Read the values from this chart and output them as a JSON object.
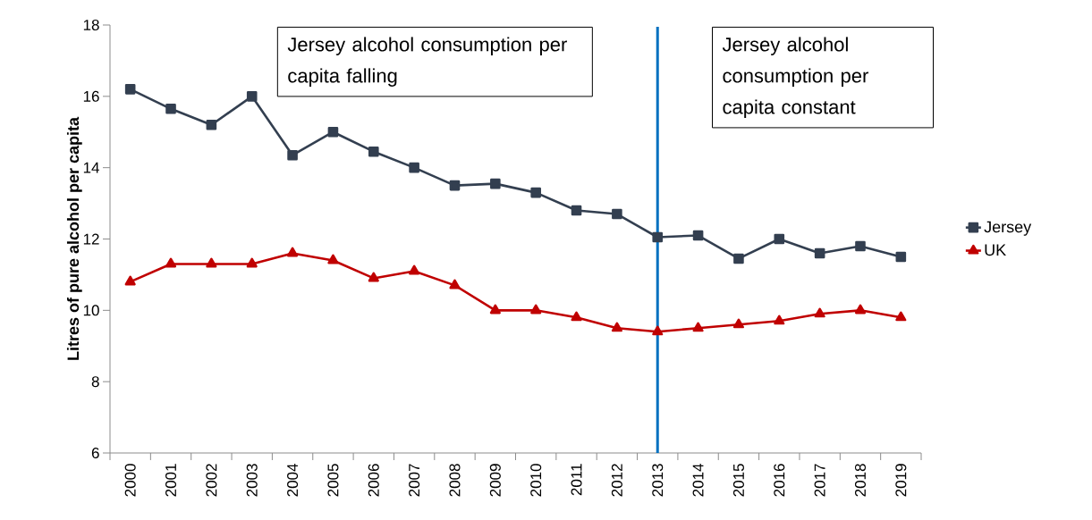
{
  "chart_data": {
    "type": "line",
    "ylabel": "Litres of pure alcohol per capita",
    "categories": [
      "2000",
      "2001",
      "2002",
      "2003",
      "2004",
      "2005",
      "2006",
      "2007",
      "2008",
      "2009",
      "2010",
      "2011",
      "2012",
      "2013",
      "2014",
      "2015",
      "2016",
      "2017",
      "2018",
      "2019"
    ],
    "series": [
      {
        "name": "Jersey",
        "color": "#333f50",
        "marker": "square",
        "values": [
          16.2,
          15.65,
          15.2,
          16.0,
          14.35,
          15.0,
          14.45,
          14.0,
          13.5,
          13.55,
          13.3,
          12.8,
          12.7,
          12.05,
          12.1,
          11.45,
          12.0,
          11.6,
          11.8,
          11.5
        ]
      },
      {
        "name": "UK",
        "color": "#c00000",
        "marker": "triangle",
        "values": [
          10.8,
          11.3,
          11.3,
          11.3,
          11.6,
          11.4,
          10.9,
          11.1,
          10.7,
          10.0,
          10.0,
          9.8,
          9.5,
          9.4,
          9.5,
          9.6,
          9.7,
          9.9,
          10.0,
          9.8
        ]
      }
    ],
    "ylim": [
      6,
      18
    ],
    "yticks": [
      6,
      8,
      10,
      12,
      14,
      16,
      18
    ],
    "ref_lines": [
      {
        "axis": "x",
        "value": "2013",
        "color": "#0070c0"
      }
    ],
    "annotations": [
      "Jersey alcohol consumption per capita falling",
      "Jersey alcohol consumption per capita constant"
    ],
    "legend": "right",
    "grid": false
  }
}
